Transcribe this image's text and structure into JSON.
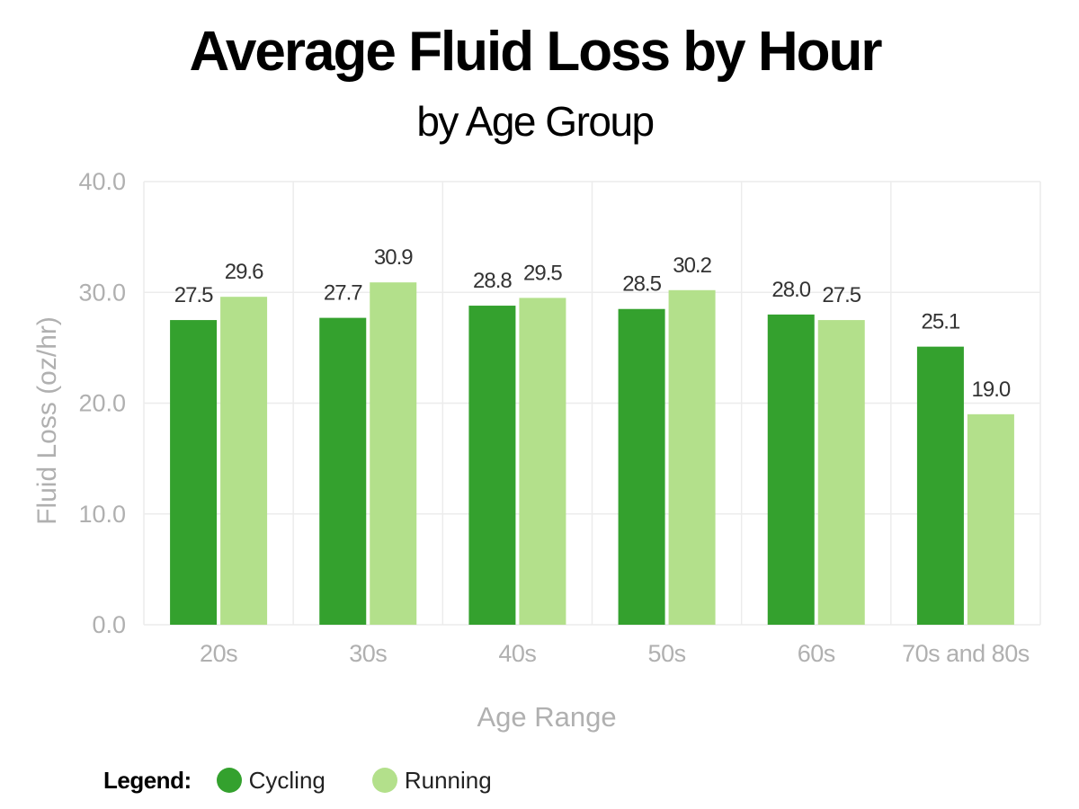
{
  "chart_data": {
    "type": "bar",
    "title": "Average Fluid Loss by Hour",
    "subtitle": "by Age Group",
    "xlabel": "Age Range",
    "ylabel": "Fluid Loss (oz/hr)",
    "categories": [
      "20s",
      "30s",
      "40s",
      "50s",
      "60s",
      "70s and 80s"
    ],
    "series": [
      {
        "name": "Cycling",
        "color": "#34a12e",
        "values": [
          27.5,
          27.7,
          28.8,
          28.5,
          28.0,
          25.1
        ]
      },
      {
        "name": "Running",
        "color": "#b3e08b",
        "values": [
          29.6,
          30.9,
          29.5,
          30.2,
          27.5,
          19.0
        ]
      }
    ],
    "ylim": [
      0,
      40
    ],
    "yticks": [
      "0.0",
      "10.0",
      "20.0",
      "30.0",
      "40.0"
    ],
    "grid": true,
    "data_labels": true,
    "legend_position": "bottom-left",
    "legend_title": "Legend:"
  }
}
